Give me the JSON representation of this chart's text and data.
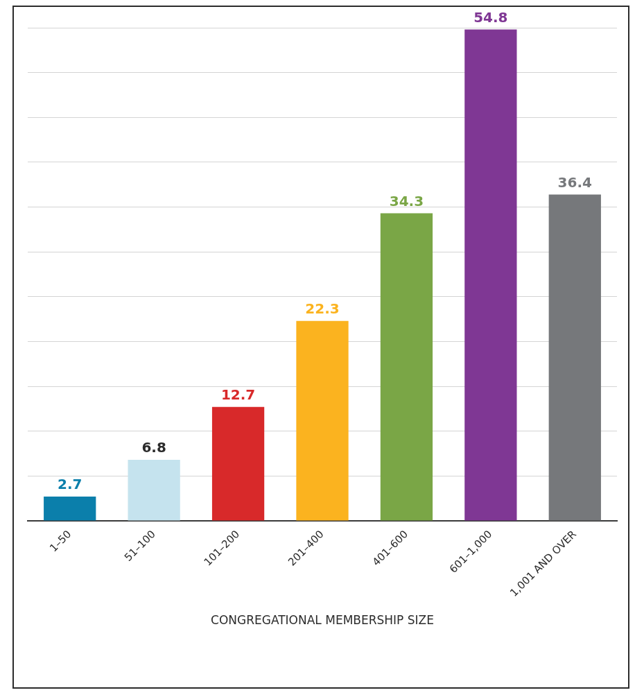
{
  "chart_data": {
    "type": "bar",
    "xlabel": "CONGREGATIONAL MEMBERSHIP SIZE",
    "categories": [
      "1–50",
      "51–100",
      "101–200",
      "201–400",
      "401–600",
      "601–1,000",
      "1,001 AND OVER"
    ],
    "values": [
      2.7,
      6.8,
      12.7,
      22.3,
      34.3,
      54.8,
      36.4
    ],
    "colors": [
      "#0b7fab",
      "#c5e3ee",
      "#d8292a",
      "#fbb31f",
      "#7aa646",
      "#7f3794",
      "#76787b"
    ],
    "ylim": [
      0,
      55
    ],
    "yticks": [
      {
        "value": 0,
        "label": null
      },
      {
        "value": 5,
        "label": null
      },
      {
        "value": 10,
        "label": null
      },
      {
        "value": 15,
        "label": null
      },
      {
        "value": 20,
        "label": null
      },
      {
        "value": 25,
        "label": null
      },
      {
        "value": 30,
        "label": null
      },
      {
        "value": 35,
        "label": null
      },
      {
        "value": 40,
        "label": null
      },
      {
        "value": 45,
        "label": null
      },
      {
        "value": 50,
        "label": null
      },
      {
        "value": 55,
        "label": null
      }
    ],
    "grid": "y",
    "tick_labels": "x",
    "data_labels": true,
    "legend": false
  }
}
